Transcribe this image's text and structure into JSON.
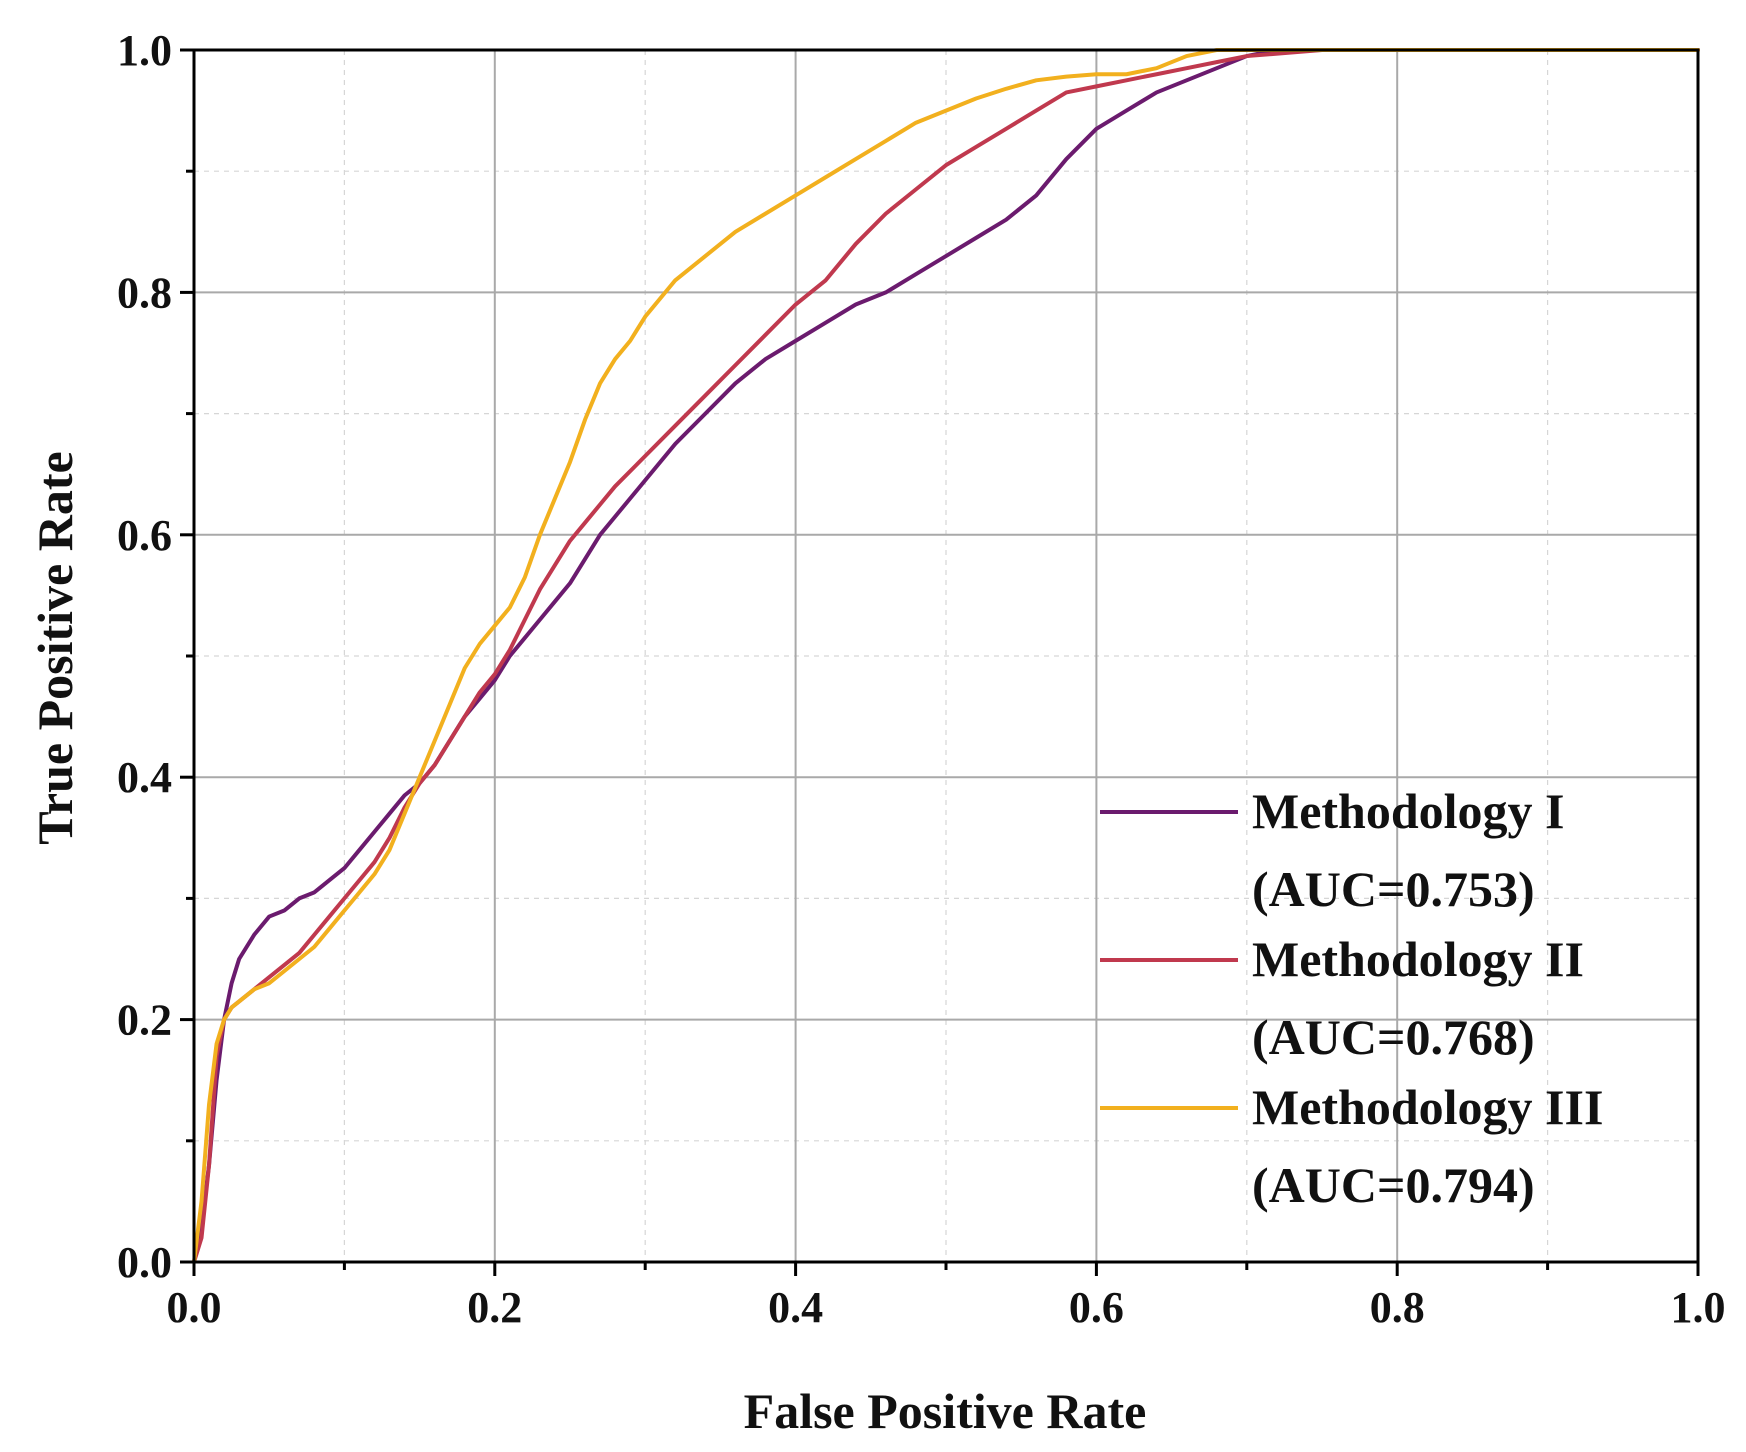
{
  "chart_data": {
    "type": "line",
    "title": "",
    "xlabel": "False Positive Rate",
    "ylabel": "True Positive Rate",
    "xlim": [
      0.0,
      1.0
    ],
    "ylim": [
      0.0,
      1.0
    ],
    "xticks": [
      "0.0",
      "0.2",
      "0.4",
      "0.6",
      "0.8",
      "1.0"
    ],
    "yticks": [
      "0.0",
      "0.2",
      "0.4",
      "0.6",
      "0.8",
      "1.0"
    ],
    "grid": true,
    "legend_position": "bottom-right",
    "series": [
      {
        "name": "Methodology I",
        "auc_label": "(AUC=0.753)",
        "color": "#6B1B6E",
        "x": [
          0.0,
          0.005,
          0.01,
          0.015,
          0.02,
          0.025,
          0.03,
          0.04,
          0.05,
          0.06,
          0.07,
          0.08,
          0.09,
          0.1,
          0.11,
          0.12,
          0.13,
          0.14,
          0.15,
          0.16,
          0.17,
          0.18,
          0.19,
          0.2,
          0.21,
          0.22,
          0.23,
          0.24,
          0.25,
          0.26,
          0.27,
          0.28,
          0.3,
          0.32,
          0.34,
          0.36,
          0.38,
          0.4,
          0.42,
          0.44,
          0.46,
          0.48,
          0.5,
          0.52,
          0.54,
          0.56,
          0.58,
          0.6,
          0.62,
          0.64,
          0.66,
          0.68,
          0.7,
          0.72,
          0.75,
          0.8,
          0.9,
          1.0
        ],
        "y": [
          0.0,
          0.03,
          0.08,
          0.15,
          0.2,
          0.23,
          0.25,
          0.27,
          0.285,
          0.29,
          0.3,
          0.305,
          0.315,
          0.325,
          0.34,
          0.355,
          0.37,
          0.385,
          0.395,
          0.41,
          0.43,
          0.45,
          0.465,
          0.48,
          0.5,
          0.515,
          0.53,
          0.545,
          0.56,
          0.58,
          0.6,
          0.615,
          0.645,
          0.675,
          0.7,
          0.725,
          0.745,
          0.76,
          0.775,
          0.79,
          0.8,
          0.815,
          0.83,
          0.845,
          0.86,
          0.88,
          0.91,
          0.935,
          0.95,
          0.965,
          0.975,
          0.985,
          0.995,
          1.0,
          1.0,
          1.0,
          1.0,
          1.0
        ]
      },
      {
        "name": "Methodology II",
        "auc_label": "(AUC=0.768)",
        "color": "#C0394E",
        "x": [
          0.0,
          0.005,
          0.01,
          0.015,
          0.02,
          0.025,
          0.03,
          0.04,
          0.05,
          0.06,
          0.07,
          0.08,
          0.09,
          0.1,
          0.11,
          0.12,
          0.13,
          0.14,
          0.15,
          0.16,
          0.17,
          0.18,
          0.19,
          0.2,
          0.21,
          0.22,
          0.23,
          0.24,
          0.25,
          0.26,
          0.27,
          0.28,
          0.3,
          0.32,
          0.34,
          0.36,
          0.38,
          0.4,
          0.42,
          0.44,
          0.46,
          0.48,
          0.5,
          0.52,
          0.54,
          0.56,
          0.58,
          0.6,
          0.62,
          0.64,
          0.66,
          0.68,
          0.7,
          0.75,
          0.8,
          0.9,
          1.0
        ],
        "y": [
          0.0,
          0.02,
          0.08,
          0.17,
          0.2,
          0.21,
          0.215,
          0.225,
          0.235,
          0.245,
          0.255,
          0.27,
          0.285,
          0.3,
          0.315,
          0.33,
          0.35,
          0.375,
          0.395,
          0.41,
          0.43,
          0.45,
          0.47,
          0.485,
          0.505,
          0.53,
          0.555,
          0.575,
          0.595,
          0.61,
          0.625,
          0.64,
          0.665,
          0.69,
          0.715,
          0.74,
          0.765,
          0.79,
          0.81,
          0.84,
          0.865,
          0.885,
          0.905,
          0.92,
          0.935,
          0.95,
          0.965,
          0.97,
          0.975,
          0.98,
          0.985,
          0.99,
          0.995,
          1.0,
          1.0,
          1.0,
          1.0
        ]
      },
      {
        "name": "Methodology III",
        "auc_label": "(AUC=0.794)",
        "color": "#F2B01E",
        "x": [
          0.0,
          0.005,
          0.01,
          0.015,
          0.02,
          0.025,
          0.03,
          0.04,
          0.05,
          0.06,
          0.07,
          0.08,
          0.09,
          0.1,
          0.11,
          0.12,
          0.13,
          0.14,
          0.15,
          0.16,
          0.17,
          0.18,
          0.19,
          0.2,
          0.21,
          0.22,
          0.23,
          0.24,
          0.25,
          0.26,
          0.27,
          0.28,
          0.29,
          0.3,
          0.32,
          0.34,
          0.36,
          0.38,
          0.4,
          0.42,
          0.44,
          0.46,
          0.48,
          0.5,
          0.52,
          0.54,
          0.56,
          0.58,
          0.6,
          0.62,
          0.64,
          0.66,
          0.68,
          0.7,
          0.75,
          0.8,
          0.9,
          1.0
        ],
        "y": [
          0.0,
          0.05,
          0.13,
          0.18,
          0.2,
          0.21,
          0.215,
          0.225,
          0.23,
          0.24,
          0.25,
          0.26,
          0.275,
          0.29,
          0.305,
          0.32,
          0.34,
          0.37,
          0.4,
          0.43,
          0.46,
          0.49,
          0.51,
          0.525,
          0.54,
          0.565,
          0.6,
          0.63,
          0.66,
          0.695,
          0.725,
          0.745,
          0.76,
          0.78,
          0.81,
          0.83,
          0.85,
          0.865,
          0.88,
          0.895,
          0.91,
          0.925,
          0.94,
          0.95,
          0.96,
          0.968,
          0.975,
          0.978,
          0.98,
          0.98,
          0.985,
          0.995,
          1.0,
          1.0,
          1.0,
          1.0,
          1.0,
          1.0
        ]
      }
    ]
  }
}
